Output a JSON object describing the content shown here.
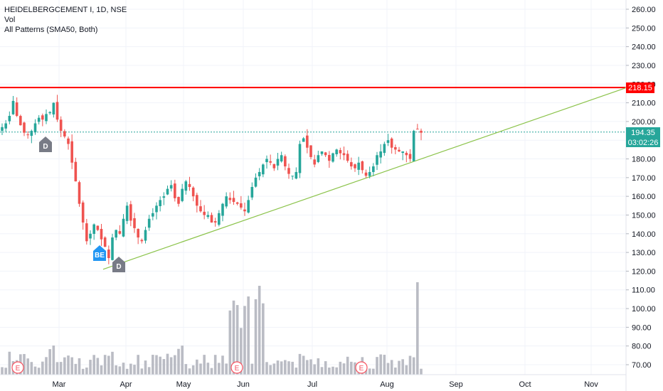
{
  "legend": {
    "title": "HEIDELBERGCEMENT I, 1D, NSE",
    "volume_label": "Vol",
    "indicator_label": "All Patterns (SMA50, Both)"
  },
  "price_labels": {
    "resistance": "218.15",
    "last_price": "194.35",
    "countdown": "03:02:26"
  },
  "pattern_markers": [
    {
      "label": "D",
      "color": "#787b86"
    },
    {
      "label": "BE",
      "color": "#2196f3"
    },
    {
      "label": "D",
      "color": "#787b86"
    }
  ],
  "earnings_markers": [
    {
      "label": "E",
      "color": "#f7525f"
    },
    {
      "label": "E",
      "color": "#f7525f"
    },
    {
      "label": "E",
      "color": "#f7525f"
    }
  ],
  "colors": {
    "up": "#26a69a",
    "down": "#ef5350",
    "volume": "#b2b5be",
    "resistance": "#ff0000",
    "trendline": "#8bc34a",
    "last_price": "#26a69a"
  },
  "chart_data": {
    "type": "candlestick",
    "title": "HEIDELBERGCEMENT I, 1D, NSE",
    "x_ticks": [
      "Mar",
      "Apr",
      "May",
      "Jun",
      "Jul",
      "Aug",
      "Sep",
      "Oct",
      "Nov"
    ],
    "y_ticks": [
      "70.00",
      "80.00",
      "90.00",
      "100.00",
      "110.00",
      "120.00",
      "130.00",
      "140.00",
      "150.00",
      "160.00",
      "170.00",
      "180.00",
      "190.00",
      "200.00",
      "210.00",
      "220.00",
      "230.00",
      "240.00",
      "250.00",
      "260.00"
    ],
    "ylim": [
      65,
      264
    ],
    "horizontal_line": 218.15,
    "last_price": 194.35,
    "trendline": [
      {
        "x": "Mar 20",
        "y": 121
      },
      {
        "x": "Nov 20",
        "y": 218
      }
    ],
    "series_close": [
      197,
      199,
      203,
      211,
      203,
      198,
      194,
      193,
      195,
      199,
      202,
      201,
      204,
      205,
      210,
      201,
      195,
      192,
      188,
      178,
      168,
      156,
      146,
      136,
      140,
      145,
      142,
      137,
      133,
      127,
      138,
      142,
      140,
      148,
      155,
      147,
      143,
      138,
      136,
      142,
      148,
      151,
      155,
      158,
      160,
      164,
      166,
      159,
      156,
      164,
      168,
      165,
      160,
      155,
      152,
      150,
      150,
      146,
      146,
      151,
      156,
      160,
      158,
      157,
      156,
      154,
      152,
      158,
      165,
      170,
      173,
      177,
      180,
      178,
      175,
      180,
      182,
      176,
      172,
      171,
      173,
      188,
      191,
      186,
      181,
      177,
      182,
      184,
      182,
      179,
      183,
      185,
      183,
      182,
      179,
      176,
      175,
      178,
      174,
      171,
      173,
      176,
      182,
      184,
      188,
      190,
      186,
      185,
      184,
      184,
      182,
      180,
      195,
      196,
      194
    ]
  }
}
